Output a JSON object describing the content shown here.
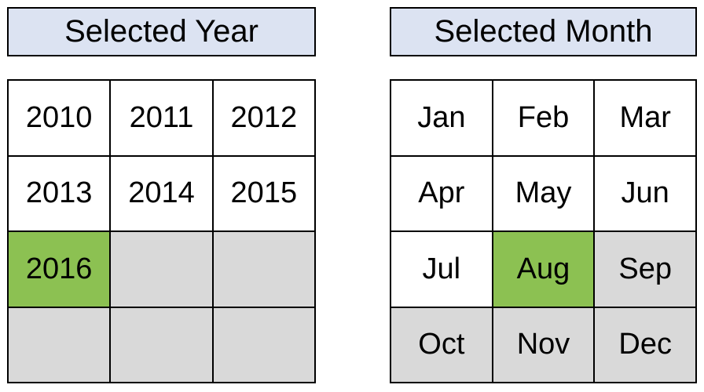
{
  "year_slicer": {
    "title": "Selected Year",
    "items": [
      {
        "label": "2010",
        "state": "normal"
      },
      {
        "label": "2011",
        "state": "normal"
      },
      {
        "label": "2012",
        "state": "normal"
      },
      {
        "label": "2013",
        "state": "normal"
      },
      {
        "label": "2014",
        "state": "normal"
      },
      {
        "label": "2015",
        "state": "normal"
      },
      {
        "label": "2016",
        "state": "selected"
      },
      {
        "label": "",
        "state": "disabled"
      },
      {
        "label": "",
        "state": "disabled"
      },
      {
        "label": "",
        "state": "disabled"
      },
      {
        "label": "",
        "state": "disabled"
      },
      {
        "label": "",
        "state": "disabled"
      }
    ]
  },
  "month_slicer": {
    "title": "Selected Month",
    "items": [
      {
        "label": "Jan",
        "state": "normal"
      },
      {
        "label": "Feb",
        "state": "normal"
      },
      {
        "label": "Mar",
        "state": "normal"
      },
      {
        "label": "Apr",
        "state": "normal"
      },
      {
        "label": "May",
        "state": "normal"
      },
      {
        "label": "Jun",
        "state": "normal"
      },
      {
        "label": "Jul",
        "state": "normal"
      },
      {
        "label": "Aug",
        "state": "selected"
      },
      {
        "label": "Sep",
        "state": "disabled"
      },
      {
        "label": "Oct",
        "state": "disabled"
      },
      {
        "label": "Nov",
        "state": "disabled"
      },
      {
        "label": "Dec",
        "state": "disabled"
      }
    ]
  },
  "colors": {
    "header_bg": "#dce3f2",
    "selected_bg": "#8cc152",
    "disabled_bg": "#d9d9d9"
  }
}
